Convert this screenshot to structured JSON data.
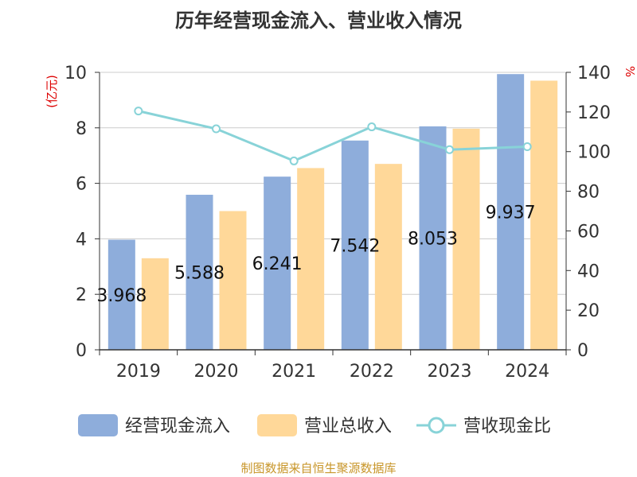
{
  "chart_data": {
    "type": "bar",
    "title": "历年经营现金流入、营业收入情况",
    "categories": [
      "2019",
      "2020",
      "2021",
      "2022",
      "2023",
      "2024"
    ],
    "y_left": {
      "unit_label": "(亿元)",
      "ylim": [
        0,
        10
      ],
      "ticks": [
        "0",
        "2",
        "4",
        "6",
        "8",
        "10"
      ]
    },
    "y_right": {
      "unit_label": "%",
      "ylim": [
        0,
        140
      ],
      "ticks": [
        "0",
        "20",
        "40",
        "60",
        "80",
        "100",
        "120",
        "140"
      ]
    },
    "series": [
      {
        "name": "经营现金流入",
        "type": "bar",
        "axis": "left",
        "color": "#8eaddb",
        "values": [
          3.968,
          5.588,
          6.241,
          7.542,
          8.053,
          9.937
        ],
        "labels": [
          "3.968",
          "5.588",
          "6.241",
          "7.542",
          "8.053",
          "9.937"
        ]
      },
      {
        "name": "营业总收入",
        "type": "bar",
        "axis": "left",
        "color": "#ffd899",
        "values": [
          3.3,
          5.0,
          6.55,
          6.7,
          7.97,
          9.7
        ]
      },
      {
        "name": "营收现金比",
        "type": "line",
        "axis": "right",
        "color": "#88d3d8",
        "values": [
          120.5,
          111.5,
          95.3,
          112.5,
          101.0,
          102.5
        ]
      }
    ],
    "grid": true,
    "legend_position": "bottom"
  },
  "footer": {
    "source": "制图数据来自恒生聚源数据库"
  }
}
